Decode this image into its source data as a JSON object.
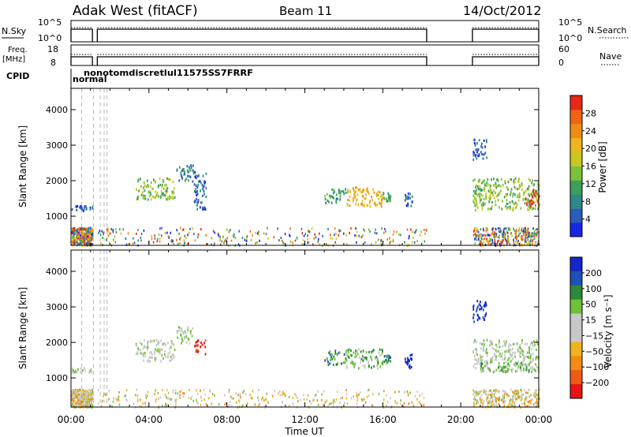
{
  "header": {
    "radar": "Adak West (fitACF)",
    "beam": "Beam 11",
    "date": "14/Oct/2012"
  },
  "chart_data": [
    {
      "id": "nsky",
      "type": "line",
      "left_label": "N.Sky",
      "right_label": "N.Search",
      "left_ticks": [
        "10^5",
        "10^0"
      ],
      "right_ticks": [
        "10^5",
        "10^0"
      ],
      "segments_hours": [
        [
          0,
          1.1
        ],
        [
          1.35,
          18.25
        ],
        [
          20.6,
          24.0
        ]
      ]
    },
    {
      "id": "freq",
      "type": "line",
      "left_label": "Freq.",
      "left_unit": "[MHz]",
      "right_label": "Nave",
      "left_ticks": [
        "18",
        "8"
      ],
      "right_ticks": [
        "60",
        "0"
      ],
      "segments_hours": [
        [
          0,
          1.1
        ],
        [
          1.35,
          18.25
        ],
        [
          20.6,
          24.0
        ]
      ]
    },
    {
      "id": "cpid",
      "type": "table",
      "label": "CPID",
      "entries": [
        "normal",
        "nonotomdiscretlul11575SS7FRRF"
      ]
    },
    {
      "id": "power",
      "type": "heatmap",
      "ylabel": "Slant Range [km]",
      "yticks": [
        1000,
        2000,
        3000,
        4000
      ],
      "ylim": [
        180,
        4600
      ],
      "xlim": [
        0,
        24
      ],
      "colorbar": {
        "label": "Power [dB]",
        "ticks": [
          "4",
          "8",
          "12",
          "16",
          "20",
          "24",
          "28"
        ],
        "colors": [
          "#1428e6",
          "#2a5cb8",
          "#2e8a8a",
          "#3aa05a",
          "#7cc13a",
          "#c8c81e",
          "#f0b41e",
          "#f08c14",
          "#f06414",
          "#e62814"
        ]
      },
      "patches": [
        {
          "t0": 0.0,
          "t1": 1.1,
          "r0": 1180,
          "r1": 1320,
          "level": 1
        },
        {
          "t0": 3.3,
          "t1": 5.3,
          "r0": 1500,
          "r1": 2100,
          "level": 4
        },
        {
          "t0": 5.4,
          "t1": 6.3,
          "r0": 2000,
          "r1": 2500,
          "level": 2
        },
        {
          "t0": 6.3,
          "t1": 6.9,
          "r0": 1200,
          "r1": 2300,
          "level": 1
        },
        {
          "t0": 13.0,
          "t1": 14.1,
          "r0": 1400,
          "r1": 1800,
          "level": 3
        },
        {
          "t0": 14.1,
          "t1": 16.0,
          "r0": 1300,
          "r1": 1850,
          "level": 6
        },
        {
          "t0": 16.0,
          "t1": 16.4,
          "r0": 1450,
          "r1": 1700,
          "level": 3
        },
        {
          "t0": 17.1,
          "t1": 17.5,
          "r0": 1300,
          "r1": 1700,
          "level": 1
        },
        {
          "t0": 20.6,
          "t1": 21.3,
          "r0": 2600,
          "r1": 3200,
          "level": 1
        },
        {
          "t0": 20.6,
          "t1": 24.0,
          "r0": 1200,
          "r1": 2100,
          "level": 4
        },
        {
          "t0": 23.3,
          "t1": 24.0,
          "r0": 1300,
          "r1": 1800,
          "level": 9
        }
      ]
    },
    {
      "id": "velocity",
      "type": "heatmap",
      "ylabel": "Slant Range [km]",
      "xlabel": "Time UT",
      "xticks": [
        "00:00",
        "04:00",
        "08:00",
        "12:00",
        "16:00",
        "20:00",
        "00:00"
      ],
      "yticks": [
        1000,
        2000,
        3000,
        4000
      ],
      "ylim": [
        180,
        4600
      ],
      "xlim": [
        0,
        24
      ],
      "colorbar": {
        "label": "Velocity [m s⁻¹]",
        "ticks": [
          "200",
          "100",
          "50",
          "15",
          "−15",
          "−50",
          "−100",
          "−200"
        ],
        "colors": [
          "#1428c8",
          "#2050b4",
          "#2a8a3a",
          "#6ec23a",
          "#c8c8c8",
          "#c8c8c8",
          "#f0b41e",
          "#f08c14",
          "#f05a14",
          "#e61414"
        ]
      },
      "patches": [
        {
          "t0": 0.0,
          "t1": 1.1,
          "r0": 1180,
          "r1": 1320,
          "level": 4
        },
        {
          "t0": 3.3,
          "t1": 5.3,
          "r0": 1500,
          "r1": 2100,
          "level": 4
        },
        {
          "t0": 5.4,
          "t1": 6.3,
          "r0": 2000,
          "r1": 2500,
          "level": 4
        },
        {
          "t0": 6.3,
          "t1": 6.9,
          "r0": 1700,
          "r1": 2100,
          "level": 9
        },
        {
          "t0": 13.0,
          "t1": 14.1,
          "r0": 1400,
          "r1": 1800,
          "level": 2
        },
        {
          "t0": 14.1,
          "t1": 16.0,
          "r0": 1300,
          "r1": 1850,
          "level": 3
        },
        {
          "t0": 16.0,
          "t1": 16.4,
          "r0": 1450,
          "r1": 1700,
          "level": 2
        },
        {
          "t0": 17.1,
          "t1": 17.5,
          "r0": 1300,
          "r1": 1700,
          "level": 0
        },
        {
          "t0": 20.6,
          "t1": 21.3,
          "r0": 2600,
          "r1": 3200,
          "level": 0
        },
        {
          "t0": 20.6,
          "t1": 24.0,
          "r0": 1200,
          "r1": 2100,
          "level": 4
        },
        {
          "t0": 21.0,
          "t1": 23.5,
          "r0": 1200,
          "r1": 1450,
          "level": 3
        }
      ]
    }
  ]
}
